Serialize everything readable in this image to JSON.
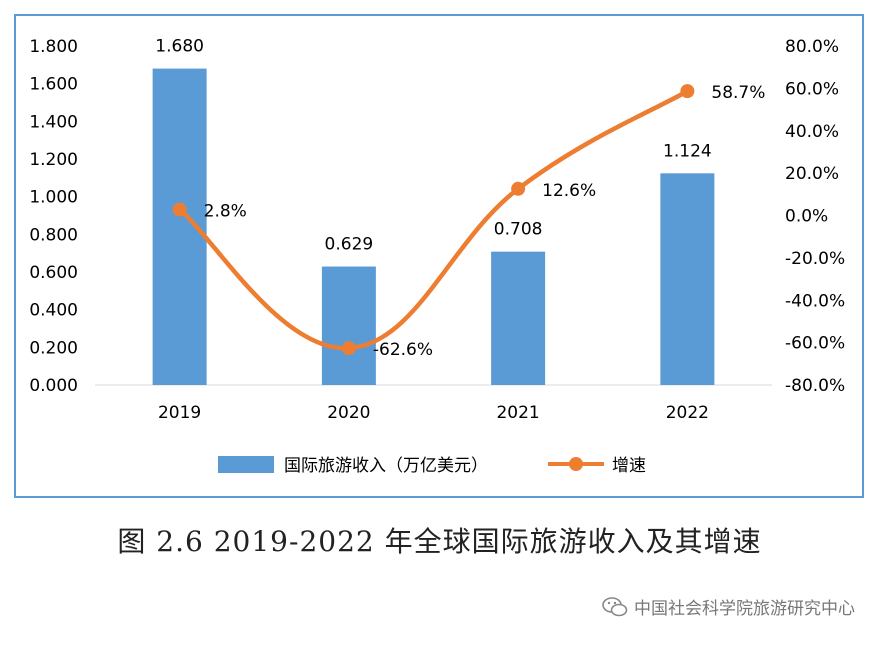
{
  "chart_data": {
    "type": "bar",
    "categories": [
      "2019",
      "2020",
      "2021",
      "2022"
    ],
    "series": [
      {
        "name": "国际旅游收入（万亿美元）",
        "type": "bar",
        "axis": "left",
        "values": [
          1.68,
          0.629,
          0.708,
          1.124
        ],
        "labels": [
          "1.680",
          "0.629",
          "0.708",
          "1.124"
        ],
        "color": "#5b9bd5"
      },
      {
        "name": "增速",
        "type": "line",
        "axis": "right",
        "values": [
          2.8,
          -62.6,
          12.6,
          58.7
        ],
        "labels": [
          "2.8%",
          "-62.6%",
          "12.6%",
          "58.7%"
        ],
        "color": "#ed7d31"
      }
    ],
    "y_left": {
      "min": 0,
      "max": 1.8,
      "step": 0.2,
      "ticks": [
        "0.000",
        "0.200",
        "0.400",
        "0.600",
        "0.800",
        "1.000",
        "1.200",
        "1.400",
        "1.600",
        "1.800"
      ]
    },
    "y_right": {
      "min": -80,
      "max": 80,
      "step": 20,
      "ticks": [
        "-80.0%",
        "-60.0%",
        "-40.0%",
        "-20.0%",
        "0.0%",
        "20.0%",
        "40.0%",
        "60.0%",
        "80.0%"
      ]
    },
    "legend_position": "bottom",
    "grid": false
  },
  "caption": "图 2.6 2019-2022 年全球国际旅游收入及其增速",
  "watermark": "中国社会科学院旅游研究中心"
}
